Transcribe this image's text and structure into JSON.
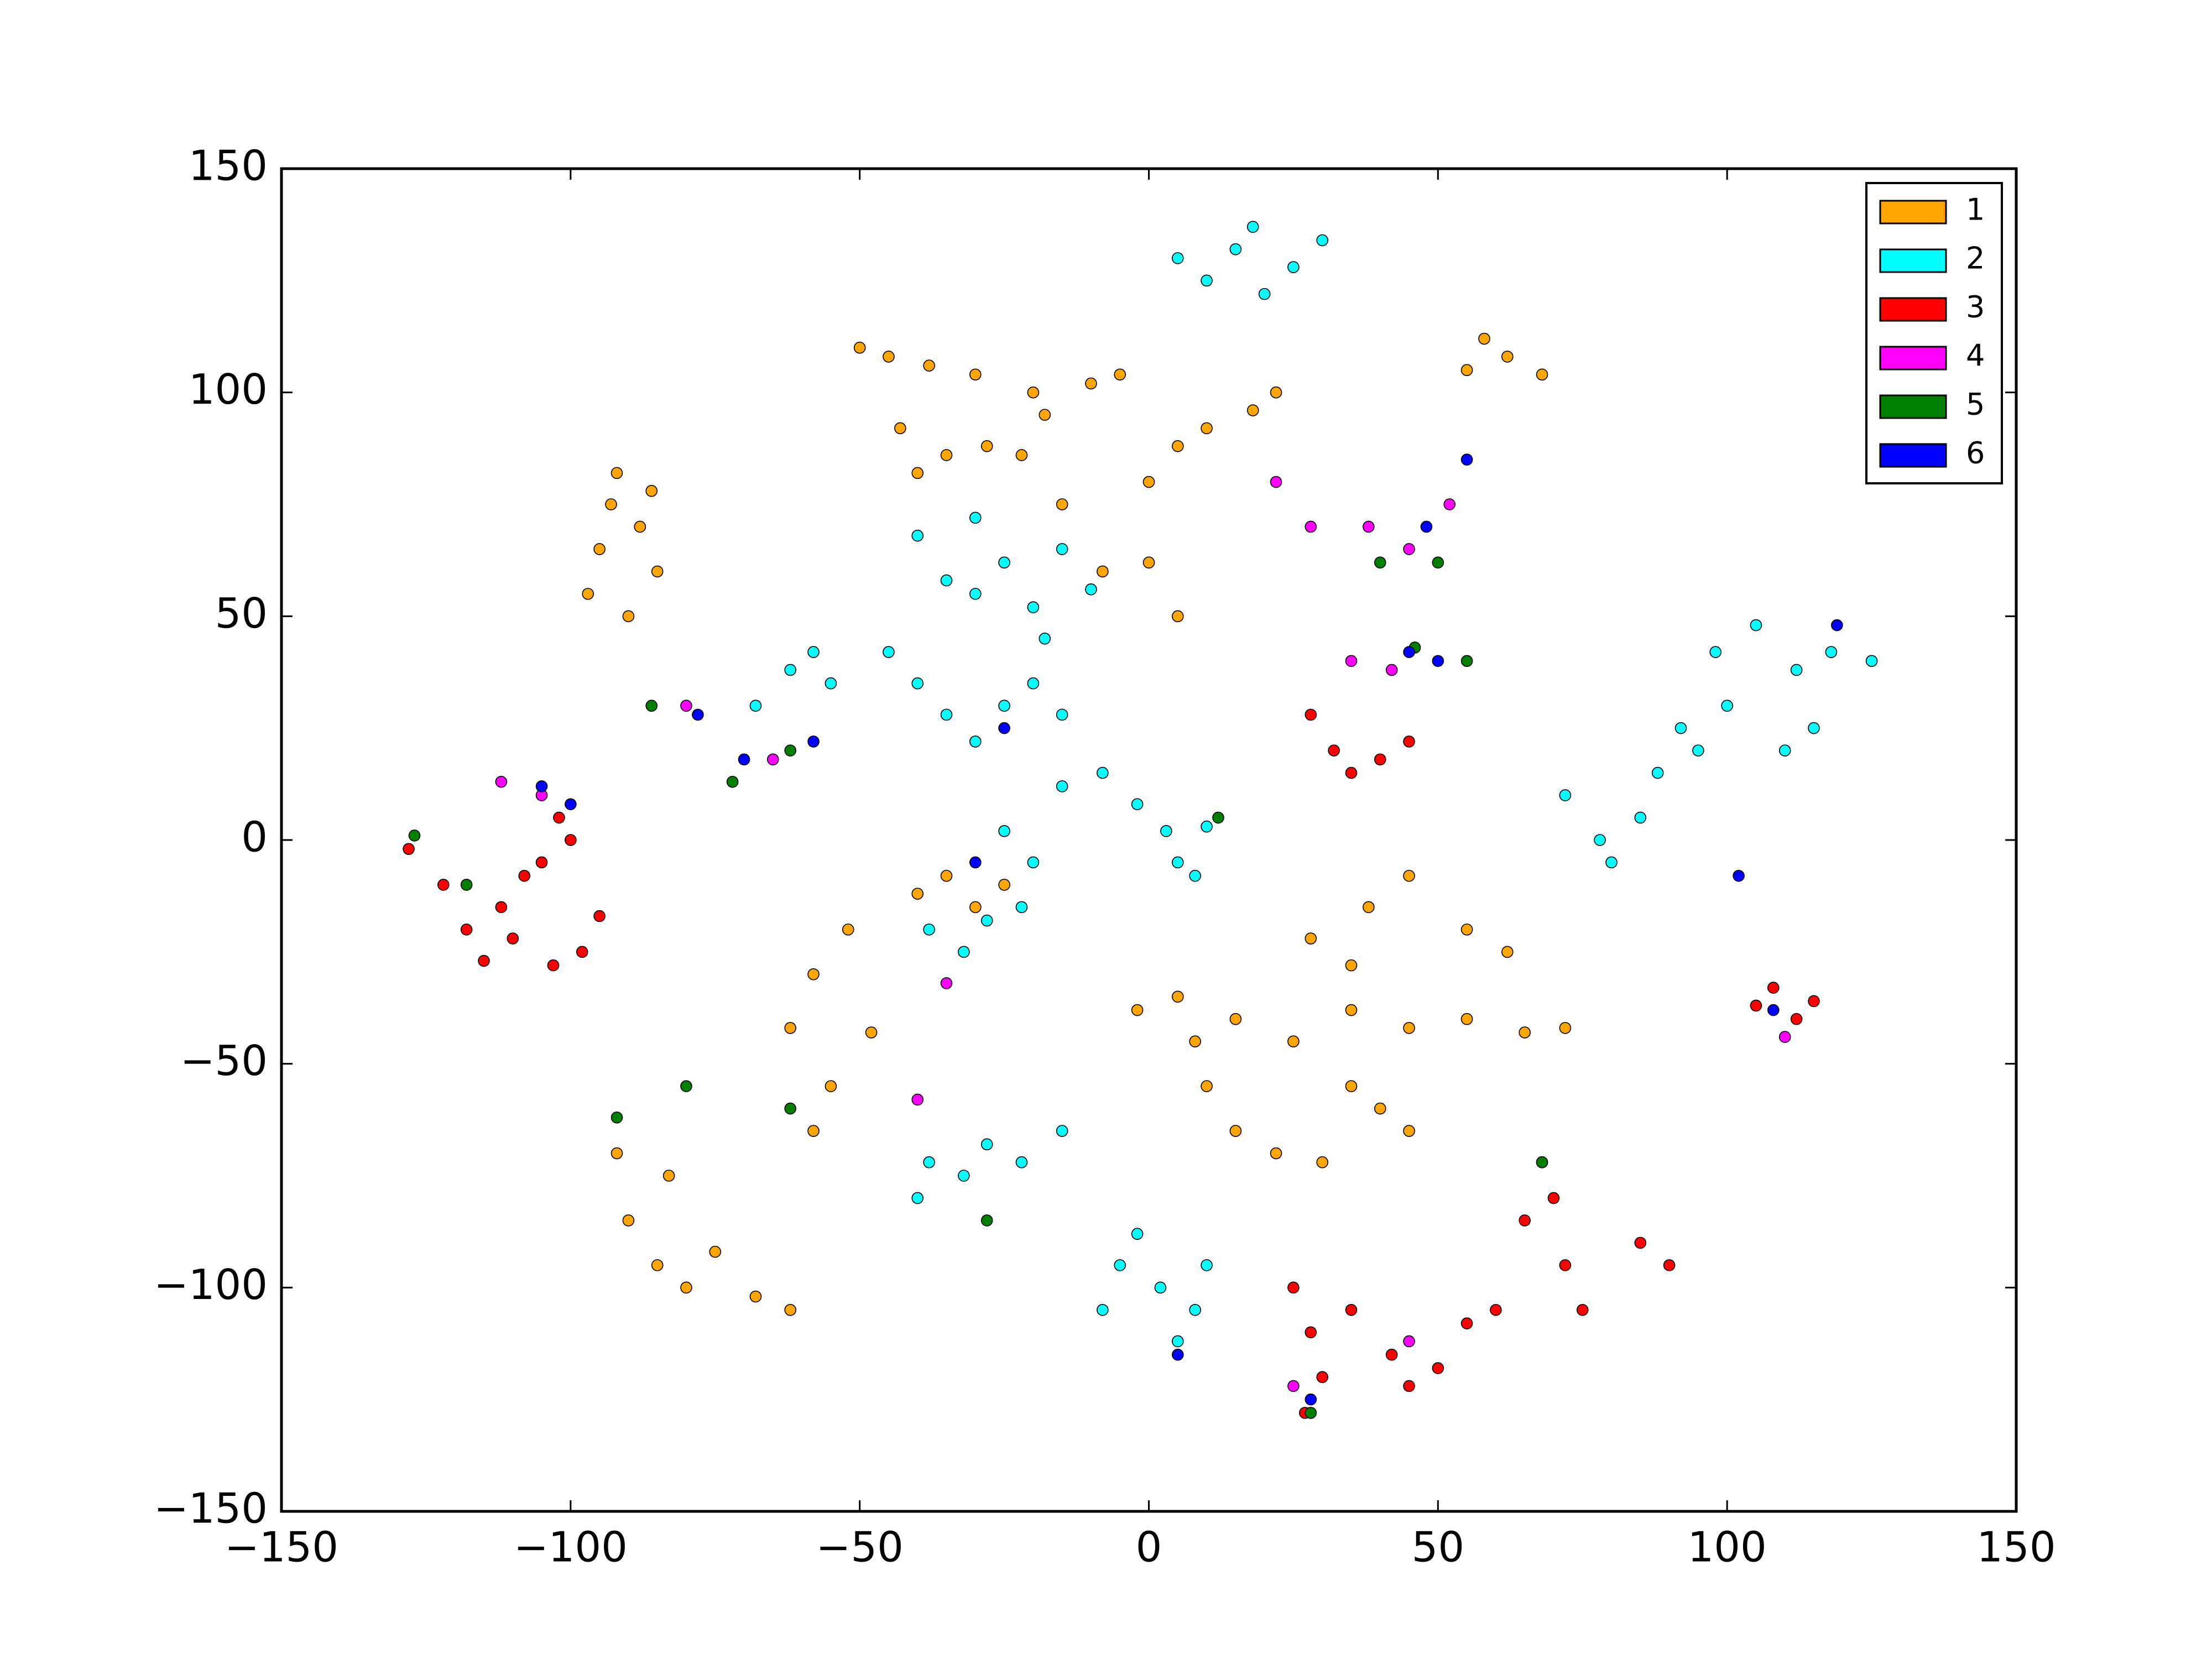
{
  "chart_data": {
    "type": "scatter",
    "grid": false,
    "legend": "upper right",
    "xlim": [
      -150,
      150
    ],
    "ylim": [
      -150,
      150
    ],
    "xticks": [
      {
        "value": -150,
        "label": "−150"
      },
      {
        "value": -100,
        "label": "−100"
      },
      {
        "value": -50,
        "label": "−50"
      },
      0,
      50,
      100,
      150
    ],
    "yticks": [
      {
        "value": -150,
        "label": "−150"
      },
      {
        "value": -100,
        "label": "−100"
      },
      {
        "value": -50,
        "label": "−50"
      },
      0,
      50,
      100,
      150
    ],
    "series": [
      {
        "name": "1",
        "color": "#ffa500",
        "x": [
          -97,
          -95,
          -93,
          -92,
          -88,
          -85,
          -90,
          -86,
          -50,
          -45,
          -38,
          -30,
          -20,
          -10,
          -5,
          -43,
          -40,
          -35,
          -28,
          -22,
          -18,
          -15,
          -8,
          0,
          5,
          0,
          5,
          10,
          18,
          22,
          55,
          58,
          62,
          68,
          -62,
          -58,
          -55,
          -52,
          -58,
          -48,
          -40,
          -30,
          -25,
          -35,
          -92,
          -90,
          -85,
          -80,
          -75,
          -68,
          -62,
          -83,
          -2,
          5,
          15,
          25,
          35,
          45,
          55,
          65,
          72,
          28,
          38,
          45,
          35,
          55,
          62,
          8,
          10,
          15,
          22,
          30,
          40,
          45,
          35
        ],
        "values": [
          55,
          65,
          75,
          82,
          70,
          60,
          50,
          78,
          110,
          108,
          106,
          104,
          100,
          102,
          104,
          92,
          82,
          86,
          88,
          86,
          95,
          75,
          60,
          62,
          50,
          80,
          88,
          92,
          96,
          100,
          105,
          112,
          108,
          104,
          -42,
          -30,
          -55,
          -20,
          -65,
          -43,
          -12,
          -15,
          -10,
          -8,
          -70,
          -85,
          -95,
          -100,
          -92,
          -102,
          -105,
          -75,
          -38,
          -35,
          -40,
          -45,
          -38,
          -42,
          -40,
          -43,
          -42,
          -22,
          -15,
          -8,
          -28,
          -20,
          -25,
          -45,
          -55,
          -65,
          -70,
          -72,
          -60,
          -65,
          -55
        ]
      },
      {
        "name": "2",
        "color": "#00ffff",
        "x": [
          5,
          10,
          15,
          20,
          25,
          30,
          18,
          -40,
          -35,
          -30,
          -25,
          -20,
          -30,
          -15,
          -10,
          -68,
          -62,
          -58,
          -55,
          -45,
          -40,
          -35,
          -30,
          -25,
          -20,
          -15,
          -18,
          -15,
          -8,
          -2,
          3,
          5,
          8,
          10,
          -20,
          -25,
          -38,
          -32,
          -28,
          -22,
          -40,
          -38,
          -32,
          -28,
          -22,
          -15,
          -8,
          -5,
          -2,
          2,
          5,
          8,
          10,
          72,
          78,
          85,
          88,
          92,
          95,
          100,
          98,
          105,
          112,
          118,
          125,
          80,
          110,
          115
        ],
        "values": [
          130,
          125,
          132,
          122,
          128,
          134,
          137,
          68,
          58,
          55,
          62,
          52,
          72,
          65,
          56,
          30,
          38,
          42,
          35,
          42,
          35,
          28,
          22,
          30,
          35,
          28,
          45,
          12,
          15,
          8,
          2,
          -5,
          -8,
          3,
          -5,
          2,
          -20,
          -25,
          -18,
          -15,
          -80,
          -72,
          -75,
          -68,
          -72,
          -65,
          -105,
          -95,
          -88,
          -100,
          -112,
          -105,
          -95,
          10,
          0,
          5,
          15,
          25,
          20,
          30,
          42,
          48,
          38,
          42,
          40,
          -5,
          20,
          25
        ]
      },
      {
        "name": "3",
        "color": "#ff0000",
        "x": [
          -128,
          -122,
          -118,
          -115,
          -112,
          -108,
          -105,
          -100,
          -102,
          -110,
          -98,
          -103,
          -95,
          28,
          32,
          35,
          40,
          45,
          105,
          108,
          112,
          115,
          65,
          70,
          72,
          75,
          68,
          85,
          90,
          60,
          55,
          25,
          28,
          30,
          27,
          35,
          42,
          45,
          50
        ],
        "values": [
          -2,
          -10,
          -20,
          -27,
          -15,
          -8,
          -5,
          0,
          5,
          -22,
          -25,
          -28,
          -17,
          28,
          20,
          15,
          18,
          22,
          -37,
          -33,
          -40,
          -36,
          -85,
          -80,
          -95,
          -105,
          -72,
          -90,
          -95,
          -105,
          -108,
          -100,
          -110,
          -120,
          -128,
          -105,
          -115,
          -122,
          -118
        ]
      },
      {
        "name": "4",
        "color": "#ff00ff",
        "x": [
          -112,
          -105,
          -65,
          -80,
          22,
          28,
          38,
          45,
          52,
          42,
          35,
          -35,
          45,
          25,
          110,
          -40
        ],
        "values": [
          13,
          10,
          18,
          30,
          80,
          70,
          70,
          65,
          75,
          38,
          40,
          -32,
          -112,
          -122,
          -44,
          -58
        ]
      },
      {
        "name": "5",
        "color": "#008000",
        "x": [
          -127,
          -118,
          -72,
          -62,
          -86,
          40,
          50,
          46,
          55,
          -62,
          -80,
          -28,
          12,
          68,
          28,
          -92
        ],
        "values": [
          1,
          -10,
          13,
          20,
          30,
          62,
          62,
          43,
          40,
          -60,
          -55,
          -85,
          5,
          -72,
          -128,
          -62
        ]
      },
      {
        "name": "6",
        "color": "#0000ff",
        "x": [
          -105,
          -100,
          -70,
          -58,
          -78,
          48,
          55,
          50,
          45,
          -30,
          -25,
          5,
          28,
          108,
          119,
          102
        ],
        "values": [
          12,
          8,
          18,
          22,
          28,
          70,
          85,
          40,
          42,
          -5,
          25,
          -115,
          -125,
          -38,
          48,
          -8
        ]
      }
    ]
  }
}
